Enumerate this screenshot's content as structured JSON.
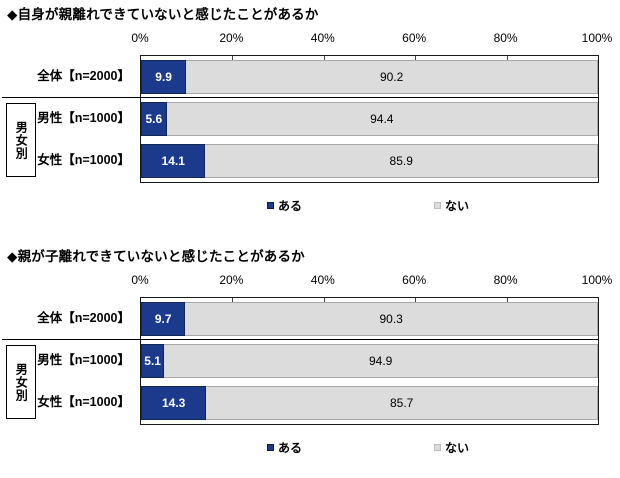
{
  "colors": {
    "aru_fill": "#1c3a8c",
    "aru_border": "#12264f",
    "nai_fill": "#dcdcdc",
    "nai_border": "#a8a8a8",
    "plot_border": "#1a1a1a",
    "text": "#000000"
  },
  "chart_data": [
    {
      "type": "bar",
      "orientation": "horizontal",
      "stacked": true,
      "title": "◆自身が親離れできていないと感じたことがあるか",
      "categories": [
        "全体【n=2000】",
        "男性【n=1000】",
        "女性【n=1000】"
      ],
      "row_group": {
        "label": "男女別",
        "member_rows": [
          1,
          2
        ]
      },
      "series": [
        {
          "name": "ある",
          "color": "#1c3a8c",
          "values": [
            9.9,
            5.6,
            14.1
          ]
        },
        {
          "name": "ない",
          "color": "#dcdcdc",
          "values": [
            90.2,
            94.4,
            85.9
          ]
        }
      ],
      "xlim": [
        0,
        100
      ],
      "x_ticks": [
        {
          "label": "0%",
          "value": 0
        },
        {
          "label": "20%",
          "value": 20
        },
        {
          "label": "40%",
          "value": 40
        },
        {
          "label": "60%",
          "value": 60
        },
        {
          "label": "80%",
          "value": 80
        },
        {
          "label": "100%",
          "value": 100
        }
      ],
      "grid": false,
      "legend_position": "bottom"
    },
    {
      "type": "bar",
      "orientation": "horizontal",
      "stacked": true,
      "title": "◆親が子離れできていないと感じたことがあるか",
      "categories": [
        "全体【n=2000】",
        "男性【n=1000】",
        "女性【n=1000】"
      ],
      "row_group": {
        "label": "男女別",
        "member_rows": [
          1,
          2
        ]
      },
      "series": [
        {
          "name": "ある",
          "color": "#1c3a8c",
          "values": [
            9.7,
            5.1,
            14.3
          ]
        },
        {
          "name": "ない",
          "color": "#dcdcdc",
          "values": [
            90.3,
            94.9,
            85.7
          ]
        }
      ],
      "xlim": [
        0,
        100
      ],
      "x_ticks": [
        {
          "label": "0%",
          "value": 0
        },
        {
          "label": "20%",
          "value": 20
        },
        {
          "label": "40%",
          "value": 40
        },
        {
          "label": "60%",
          "value": 60
        },
        {
          "label": "80%",
          "value": 80
        },
        {
          "label": "100%",
          "value": 100
        }
      ],
      "grid": false,
      "legend_position": "bottom"
    }
  ]
}
